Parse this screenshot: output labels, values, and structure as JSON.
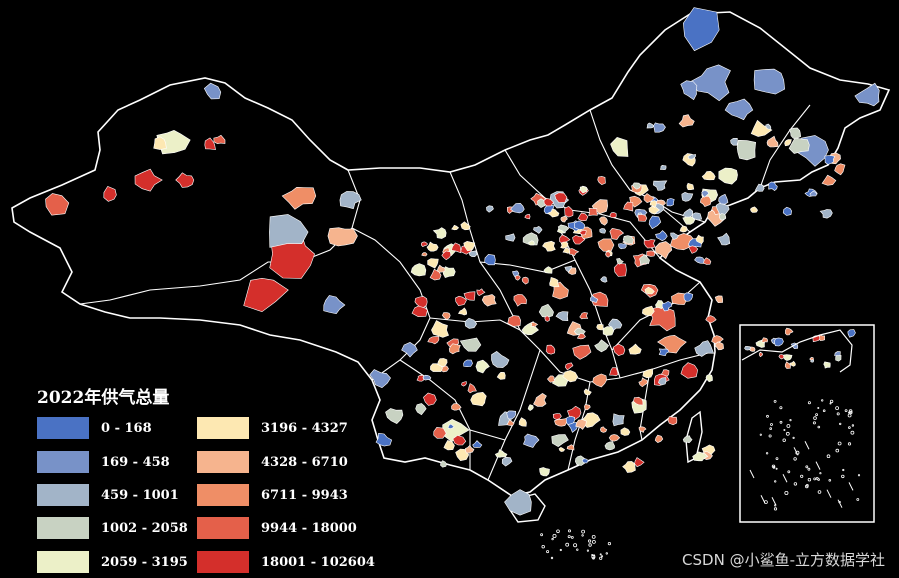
{
  "legend": {
    "title": "2022年供气总量",
    "items": [
      {
        "label": "0 - 168",
        "color": "#4a72c4"
      },
      {
        "label": "169 - 458",
        "color": "#7892c8"
      },
      {
        "label": "459 - 1001",
        "color": "#a2b4c8"
      },
      {
        "label": "1002 - 2058",
        "color": "#c8d2c2"
      },
      {
        "label": "2059 - 3195",
        "color": "#ecf0c8"
      },
      {
        "label": "3196 - 4327",
        "color": "#fde8b2"
      },
      {
        "label": "4328 - 6710",
        "color": "#f6b48e"
      },
      {
        "label": "6711 - 9943",
        "color": "#ef8e66"
      },
      {
        "label": "9944 - 18000",
        "color": "#e4604a"
      },
      {
        "label": "18001 - 102604",
        "color": "#d42f2b"
      }
    ]
  },
  "watermark": "CSDN @小鲨鱼-立方数据学社",
  "colors": {
    "background": "#000000",
    "boundary": "#ffffff"
  }
}
